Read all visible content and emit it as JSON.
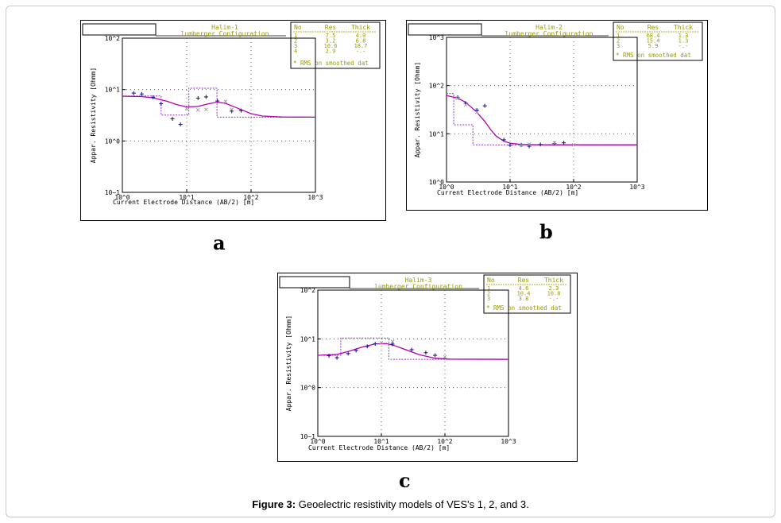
{
  "caption": {
    "label": "Figure 3:",
    "text": " Geoelectric resistivity models of VES's 1, 2, and 3."
  },
  "colors": {
    "curve": "#b200b2",
    "model": "#9b30c8",
    "obs": "#1e1e8c",
    "calc": "#a0a0a0",
    "text": "#9a9a00",
    "axis": "#000000"
  },
  "chart_data": [
    {
      "id": "a",
      "type": "line",
      "panel_label": "a",
      "title_line1": "Halim-1",
      "title_line2": "lumberger Configuration",
      "ylabel": "Appar. Resistivity [Ohmm]",
      "xlabel": "Current Electrode Distance (AB/2) [m]",
      "log_x": true,
      "log_y": true,
      "xlim": [
        1,
        1000
      ],
      "ylim": [
        0.1,
        100
      ],
      "x_ticks": [
        "10^0",
        "10^1",
        "10^2",
        "10^3"
      ],
      "y_ticks": [
        "10~1",
        "10^0",
        "10^1",
        "10^2"
      ],
      "table_headers": [
        "No",
        "Res",
        "Thick"
      ],
      "layers": [
        {
          "no": "1",
          "res": "7.5",
          "thick": "4.0"
        },
        {
          "no": "2",
          "res": "3.2",
          "thick": "6.8"
        },
        {
          "no": "3",
          "res": "10.6",
          "thick": "18.7"
        },
        {
          "no": "4",
          "res": "2.9",
          "thick": "-.-"
        }
      ],
      "rms_note": "* RMS on smoothed dat",
      "model": [
        [
          1,
          7.5
        ],
        [
          4,
          7.5
        ],
        [
          4,
          3.2
        ],
        [
          10.8,
          3.2
        ],
        [
          10.8,
          10.6
        ],
        [
          29.5,
          10.6
        ],
        [
          29.5,
          2.9
        ],
        [
          1000,
          2.9
        ]
      ],
      "curve": [
        [
          1,
          7.4
        ],
        [
          2,
          7.3
        ],
        [
          3,
          6.9
        ],
        [
          5,
          5.9
        ],
        [
          7,
          5.1
        ],
        [
          10,
          4.6
        ],
        [
          15,
          4.7
        ],
        [
          22,
          5.3
        ],
        [
          30,
          5.7
        ],
        [
          40,
          5.4
        ],
        [
          60,
          4.4
        ],
        [
          100,
          3.4
        ],
        [
          150,
          3.05
        ],
        [
          300,
          2.92
        ],
        [
          1000,
          2.9
        ]
      ],
      "observed": [
        [
          1.5,
          8.5
        ],
        [
          2,
          8.2
        ],
        [
          3,
          7.1
        ],
        [
          4,
          5.3
        ],
        [
          6,
          2.7
        ],
        [
          8,
          2.1
        ],
        [
          15,
          6.8
        ],
        [
          20,
          7.2
        ],
        [
          30,
          6.0
        ],
        [
          50,
          3.8
        ],
        [
          70,
          3.9
        ]
      ],
      "calculated": [
        [
          10,
          4.3
        ],
        [
          15,
          4.0
        ],
        [
          20,
          4.1
        ],
        [
          40,
          5.9
        ],
        [
          50,
          4.1
        ]
      ]
    },
    {
      "id": "b",
      "type": "line",
      "panel_label": "b",
      "title_line1": "Halim-2",
      "title_line2": "lumberger Configuration",
      "ylabel": "Appar. Resistivity [Ohmm]",
      "xlabel": "Current Electrode Distance (AB/2) [m]",
      "log_x": true,
      "log_y": true,
      "xlim": [
        1,
        1000
      ],
      "ylim": [
        1,
        1000
      ],
      "x_ticks": [
        "10^0",
        "10^1",
        "10^2",
        "10^3"
      ],
      "y_ticks": [
        "10^0",
        "10^1",
        "10^2",
        "10^3"
      ],
      "table_headers": [
        "No",
        "Res",
        "Thick"
      ],
      "layers": [
        {
          "no": "1",
          "res": "68.4",
          "thick": "1.3"
        },
        {
          "no": "2",
          "res": "15.4",
          "thick": "1.3"
        },
        {
          "no": "3",
          "res": "5.9",
          "thick": "-.-"
        }
      ],
      "rms_note": "* RMS on smoothed dat",
      "model": [
        [
          1,
          68.4
        ],
        [
          1.3,
          68.4
        ],
        [
          1.3,
          15.4
        ],
        [
          2.6,
          15.4
        ],
        [
          2.6,
          5.9
        ],
        [
          1000,
          5.9
        ]
      ],
      "curve": [
        [
          1,
          62
        ],
        [
          1.5,
          55
        ],
        [
          2,
          45
        ],
        [
          3,
          28
        ],
        [
          4,
          18
        ],
        [
          5,
          12
        ],
        [
          6,
          9
        ],
        [
          8,
          7
        ],
        [
          10,
          6.4
        ],
        [
          15,
          6.0
        ],
        [
          30,
          5.9
        ],
        [
          1000,
          5.9
        ]
      ],
      "observed": [
        [
          1.5,
          57
        ],
        [
          2,
          43
        ],
        [
          3,
          31
        ],
        [
          4,
          38
        ],
        [
          8,
          7.5
        ],
        [
          10,
          5.8
        ],
        [
          15,
          5.9
        ],
        [
          20,
          5.5
        ],
        [
          30,
          6.0
        ],
        [
          50,
          6.3
        ],
        [
          70,
          6.5
        ]
      ],
      "calculated": [
        [
          1.5,
          54
        ],
        [
          2,
          40
        ],
        [
          3,
          28
        ],
        [
          15,
          5.8
        ],
        [
          20,
          6.1
        ],
        [
          50,
          6.5
        ],
        [
          100,
          5.9
        ]
      ]
    },
    {
      "id": "c",
      "type": "line",
      "panel_label": "c",
      "title_line1": "Halim-3",
      "title_line2": "lumberger Configuration",
      "ylabel": "Appar. Resistivity [Ohmm]",
      "xlabel": "Current Electrode Distance (AB/2) [m]",
      "log_x": true,
      "log_y": true,
      "xlim": [
        1,
        1000
      ],
      "ylim": [
        0.1,
        100
      ],
      "x_ticks": [
        "10^0",
        "10^1",
        "10^2",
        "10^3"
      ],
      "y_ticks": [
        "10~1",
        "10^0",
        "10^1",
        "10^2"
      ],
      "table_headers": [
        "No",
        "Res",
        "Thick"
      ],
      "layers": [
        {
          "no": "1",
          "res": "4.6",
          "thick": "2.3"
        },
        {
          "no": "2",
          "res": "10.4",
          "thick": "10.8"
        },
        {
          "no": "3",
          "res": "3.8",
          "thick": "-.-"
        }
      ],
      "rms_note": "* RMS on smoothed dat",
      "model": [
        [
          1,
          4.6
        ],
        [
          2.3,
          4.6
        ],
        [
          2.3,
          10.4
        ],
        [
          13.1,
          10.4
        ],
        [
          13.1,
          3.8
        ],
        [
          1000,
          3.8
        ]
      ],
      "curve": [
        [
          1,
          4.6
        ],
        [
          2,
          4.8
        ],
        [
          3,
          5.5
        ],
        [
          5,
          6.8
        ],
        [
          8,
          7.9
        ],
        [
          12,
          8.0
        ],
        [
          16,
          7.3
        ],
        [
          25,
          5.9
        ],
        [
          40,
          4.7
        ],
        [
          70,
          4.0
        ],
        [
          120,
          3.85
        ],
        [
          1000,
          3.8
        ]
      ],
      "observed": [
        [
          1.5,
          4.5
        ],
        [
          2,
          4.1
        ],
        [
          3,
          5.0
        ],
        [
          4,
          5.8
        ],
        [
          6,
          7.0
        ],
        [
          8,
          7.9
        ],
        [
          15,
          7.8
        ],
        [
          30,
          6.0
        ],
        [
          50,
          5.2
        ],
        [
          70,
          4.6
        ]
      ],
      "calculated": [
        [
          10,
          8.3
        ],
        [
          15,
          8.8
        ],
        [
          100,
          4.3
        ]
      ]
    }
  ]
}
